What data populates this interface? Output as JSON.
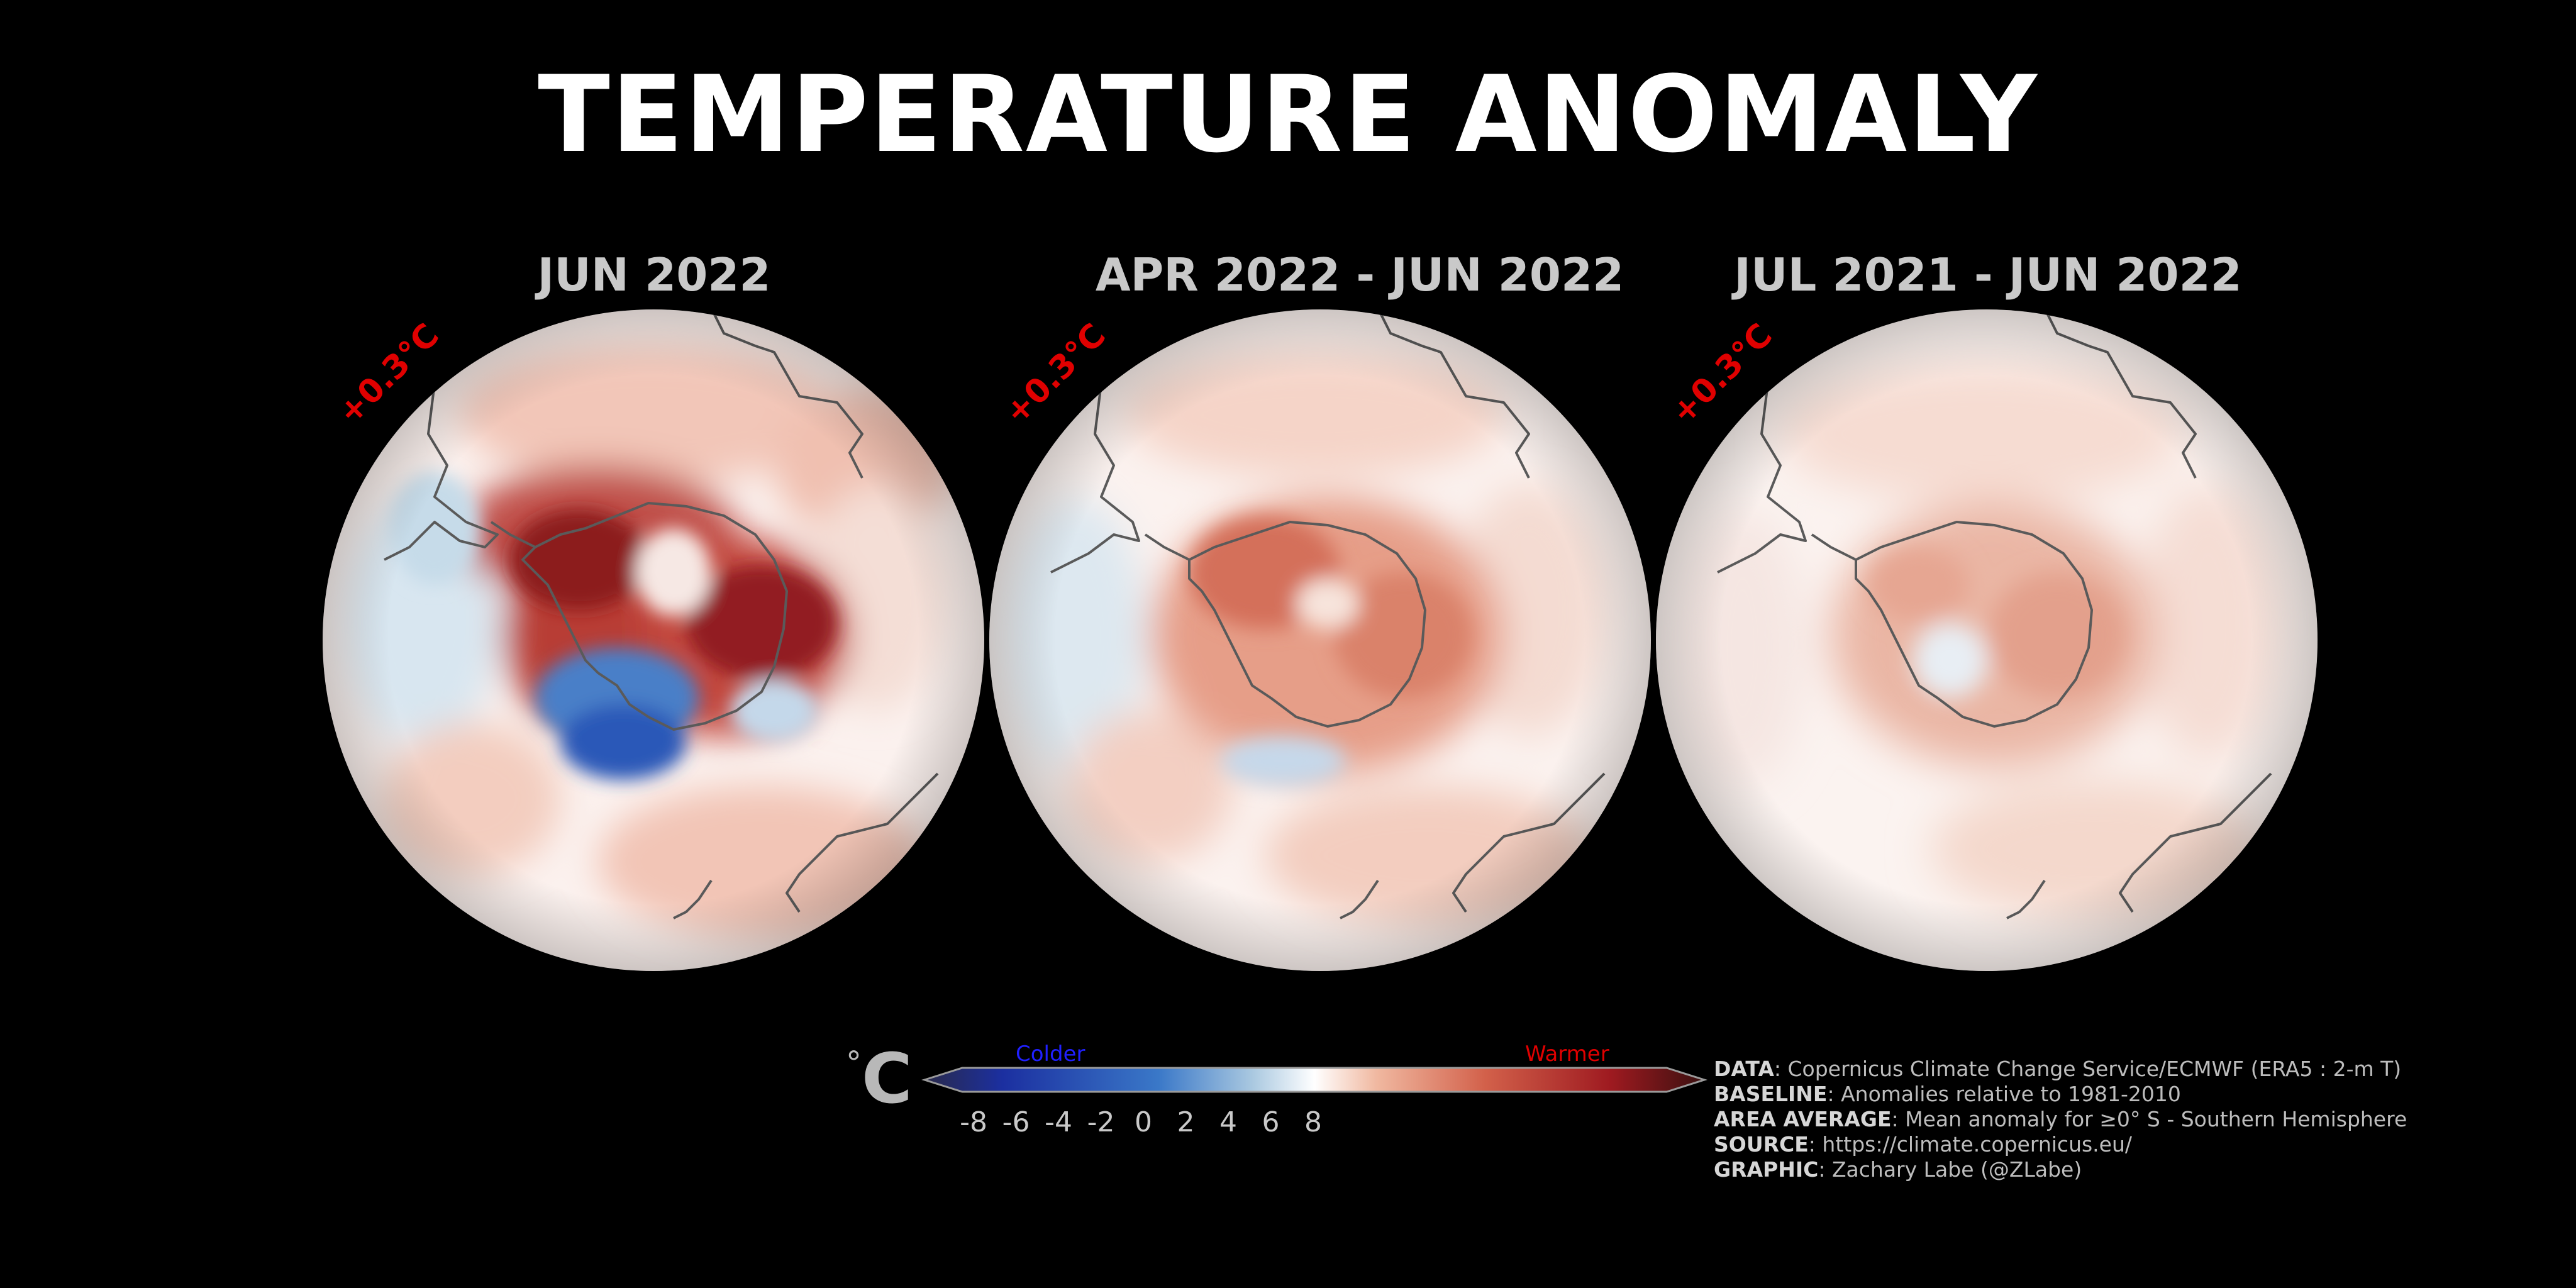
{
  "title": "TEMPERATURE ANOMALY",
  "panels": [
    {
      "title": "JUN 2022",
      "area_average": "+0.3°C"
    },
    {
      "title": "APR 2022 - JUN 2022",
      "area_average": "+0.3°C"
    },
    {
      "title": "JUL 2021 - JUN 2022",
      "area_average": "+0.3°C"
    }
  ],
  "colorbar": {
    "unit_degree": "°",
    "unit_letter": "C",
    "colder_label": "Colder",
    "warmer_label": "Warmer",
    "ticks": [
      "-8",
      "-6",
      "-4",
      "-2",
      "0",
      "2",
      "4",
      "6",
      "8"
    ],
    "range": [
      -8,
      8
    ],
    "colors": {
      "colder_label_color": "#2020ff",
      "warmer_label_color": "#e00000",
      "stops": [
        "#2a2a4a",
        "#1b2fa0",
        "#3a78c8",
        "#a9c8e0",
        "#ffffff",
        "#f0b8a0",
        "#d2604a",
        "#9e1a20",
        "#3a1010"
      ]
    }
  },
  "credits": [
    {
      "label": "DATA",
      "text": ": Copernicus Climate Change Service/ECMWF (ERA5 : 2-m T)"
    },
    {
      "label": "BASELINE",
      "text": ": Anomalies relative to 1981-2010"
    },
    {
      "label": "AREA AVERAGE",
      "text": ": Mean anomaly for ≥0° S - Southern Hemisphere"
    },
    {
      "label": "SOURCE",
      "text": ": https://climate.copernicus.eu/"
    },
    {
      "label": "GRAPHIC",
      "text": ": Zachary Labe (@ZLabe)"
    }
  ],
  "colors": {
    "background": "#000000",
    "title": "#ffffff",
    "panel_title": "#c9c9c9",
    "area_average": "#e00000",
    "coastline": "#555555"
  }
}
